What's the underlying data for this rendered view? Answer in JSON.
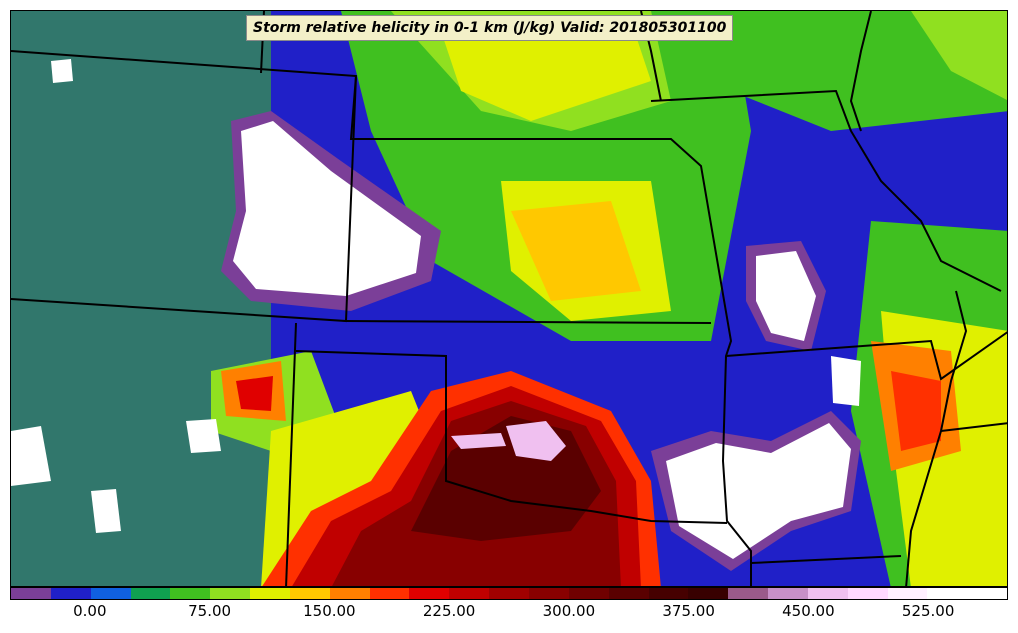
{
  "title": "Storm relative helicity in 0-1 km (J/kg) Valid: 201805301100",
  "colorbar": {
    "min": -50,
    "max": 575,
    "step": 25,
    "colors": [
      "#7b3f98",
      "#2020c8",
      "#1060e0",
      "#10a050",
      "#40c020",
      "#90e020",
      "#e0f000",
      "#ffc800",
      "#ff8000",
      "#ff3000",
      "#e00000",
      "#c00000",
      "#a00000",
      "#880000",
      "#700000",
      "#5a0000",
      "#460000",
      "#380000",
      "#9a5a8a",
      "#c890c8",
      "#f0c0f0",
      "#ffd8ff",
      "#fff0ff",
      "#ffffff",
      "#ffffff"
    ],
    "tick_labels": [
      "0.00",
      "75.00",
      "150.00",
      "225.00",
      "300.00",
      "375.00",
      "450.00",
      "525.00"
    ],
    "tick_values": [
      0,
      75,
      150,
      225,
      300,
      375,
      450,
      525
    ]
  },
  "field_legend_colors": {
    "white": "#ffffff",
    "purple": "#7b3f98",
    "blue": "#2020c8",
    "green": "#40c020",
    "yellow": "#e0f000",
    "orange": "#ff8000",
    "red": "#e00000",
    "darkred": "#5a0000",
    "pink": "#f0c0f0"
  }
}
